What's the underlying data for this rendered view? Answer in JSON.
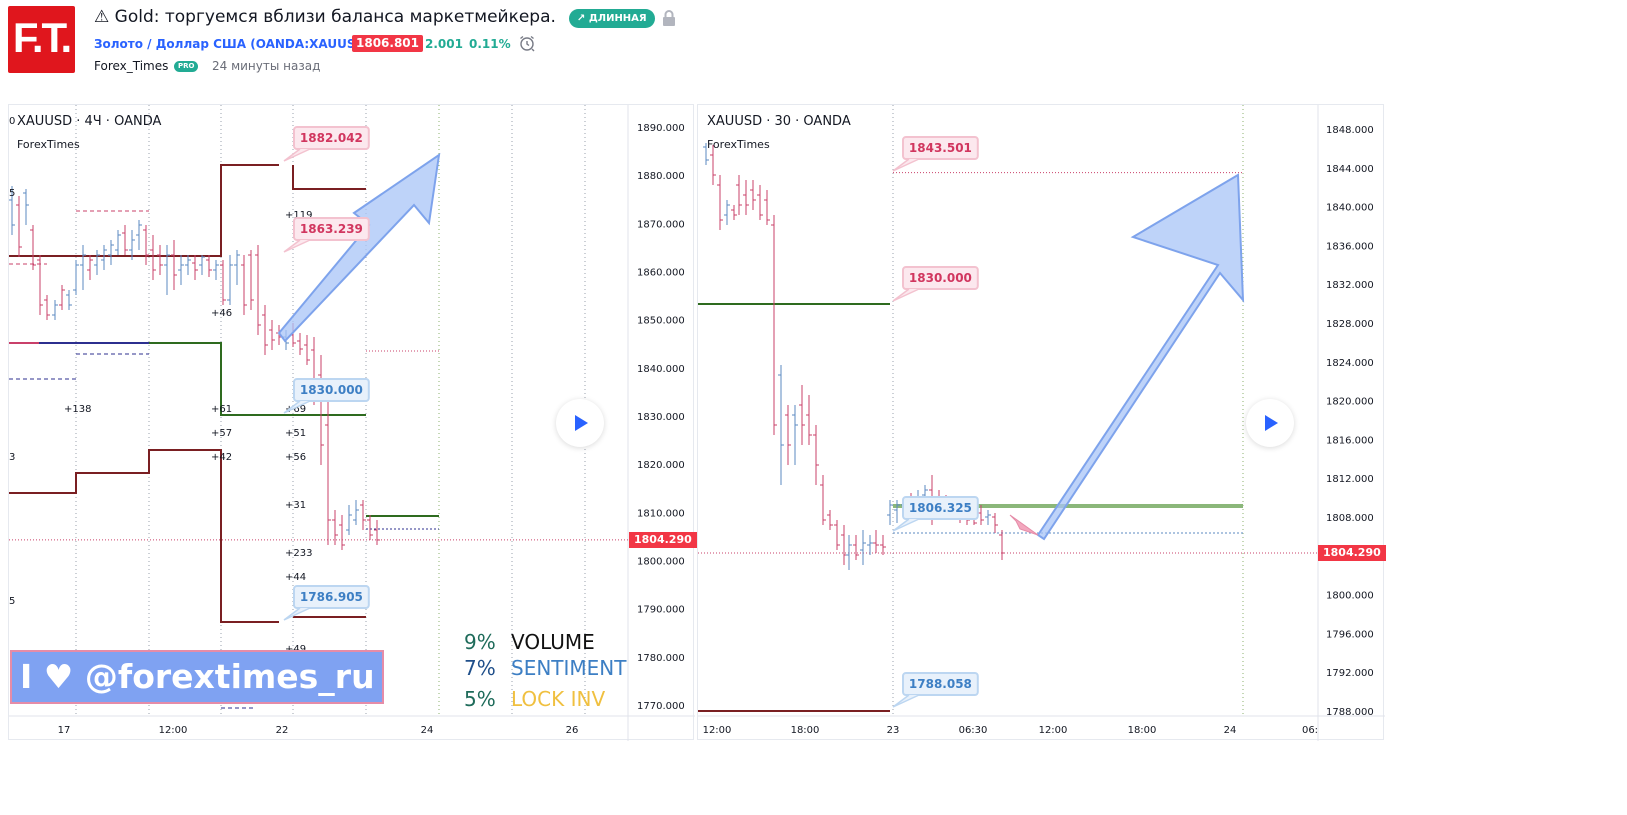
{
  "header": {
    "logo_text": "F.T.",
    "title": "⚠ Gold: торгуемся вблизи баланса маркетмейкера.",
    "direction_badge": "↗ ДЛИННАЯ",
    "symbol_link": "Золото / Доллар США (OANDA:XAUUSD)",
    "price": "1806.801",
    "change_abs": "2.001",
    "change_pct": "0.11%",
    "author": "Forex_Times",
    "author_badge": "PRO",
    "published": "24 минуты назад",
    "icons": [
      "warning-icon",
      "trend-up-icon",
      "lock-icon",
      "alarm-clock-icon"
    ]
  },
  "colors": {
    "accent": "#2962ff",
    "up": "#22ab94",
    "down": "#f23645",
    "candle_up": "#5b8ac2",
    "candle_down": "#c9406a",
    "level_dark": "#7a1f22",
    "level_green": "#2e6b1f",
    "arrow_fill": "#a8c4f7"
  },
  "left_chart": {
    "title": "XAUUSD · 4Ч · OANDA",
    "indicator": "ForexTimes",
    "current_price": "1804.290",
    "price_axis": [
      "1890.000",
      "1880.000",
      "1870.000",
      "1860.000",
      "1850.000",
      "1840.000",
      "1830.000",
      "1820.000",
      "1810.000",
      "1800.000",
      "1790.000",
      "1780.000",
      "1770.000"
    ],
    "time_axis": [
      "17",
      "12:00",
      "22",
      "24",
      "26"
    ],
    "callouts": [
      "1882.042",
      "1863.239",
      "1830.000",
      "1786.905"
    ],
    "volume_labels": [
      "+119",
      "+46",
      "+138",
      "+61",
      "+57",
      "+42",
      "+69",
      "+51",
      "+56",
      "+31",
      "+233",
      "+44",
      "+49"
    ],
    "partial_left_labels": [
      "0",
      "5",
      "3",
      "5"
    ]
  },
  "right_chart": {
    "title": "XAUUSD · 30 · OANDA",
    "indicator": "ForexTimes",
    "current_price": "1804.290",
    "price_axis": [
      "1848.000",
      "1844.000",
      "1840.000",
      "1836.000",
      "1832.000",
      "1828.000",
      "1824.000",
      "1820.000",
      "1816.000",
      "1812.000",
      "1808.000",
      "1804.000",
      "1800.000",
      "1796.000",
      "1792.000",
      "1788.000"
    ],
    "time_axis": [
      "12:00",
      "18:00",
      "23",
      "06:30",
      "12:00",
      "18:00",
      "24",
      "06:"
    ],
    "callouts": [
      "1843.501",
      "1830.000",
      "1806.325",
      "1788.058"
    ]
  },
  "overlay": {
    "banner": "I ♥ @forextimes_ru",
    "stats": [
      {
        "pct": "9%",
        "name": "VOLUME",
        "pct_color": "#1e6b5a",
        "name_color": "#111111"
      },
      {
        "pct": "7%",
        "name": "SENTIMENT",
        "pct_color": "#1f4f8a",
        "name_color": "#3d7fc4"
      },
      {
        "pct": "5%",
        "name": "LOCK INV",
        "pct_color": "#1e6b5a",
        "name_color": "#f0c040"
      }
    ]
  }
}
